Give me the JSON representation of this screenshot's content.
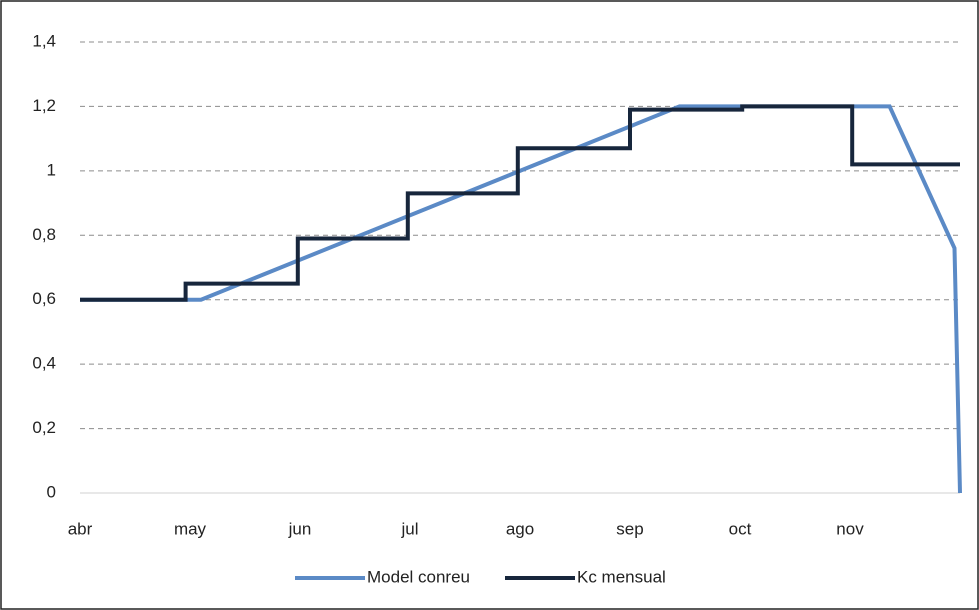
{
  "chart_data": {
    "type": "line",
    "series": [
      {
        "name": "Model conreu",
        "color": "#5b8ac6",
        "x": [
          0,
          1.1,
          5.45,
          7.36,
          7.95,
          8.0
        ],
        "values": [
          0.6,
          0.6,
          1.2,
          1.2,
          0.76,
          0
        ]
      },
      {
        "name": "Kc mensual",
        "color": "#17263c",
        "step": "post",
        "x": [
          0,
          0.96,
          1.98,
          2.98,
          3.98,
          5.0,
          6.02,
          7.02,
          8.0
        ],
        "values": [
          0.6,
          0.65,
          0.79,
          0.93,
          1.07,
          1.19,
          1.2,
          1.02,
          1.02
        ]
      }
    ],
    "xlim": [
      0,
      8
    ],
    "xticks": [
      {
        "value": 0,
        "label": "abr"
      },
      {
        "value": 1,
        "label": "may"
      },
      {
        "value": 2,
        "label": "jun"
      },
      {
        "value": 3,
        "label": "jul"
      },
      {
        "value": 4,
        "label": "ago"
      },
      {
        "value": 5,
        "label": "sep"
      },
      {
        "value": 6,
        "label": "oct"
      },
      {
        "value": 7,
        "label": "nov"
      }
    ],
    "ylim": [
      0,
      1.4
    ],
    "yticks": [
      0,
      {
        "value": 0.2,
        "label": "0,2"
      },
      {
        "value": 0.4,
        "label": "0,4"
      },
      {
        "value": 0.6,
        "label": "0,6"
      },
      {
        "value": 0.8,
        "label": "0,8"
      },
      1,
      {
        "value": 1.2,
        "label": "1,2"
      },
      {
        "value": 1.4,
        "label": "1,4"
      }
    ],
    "grid": true,
    "legend": "bottom"
  }
}
